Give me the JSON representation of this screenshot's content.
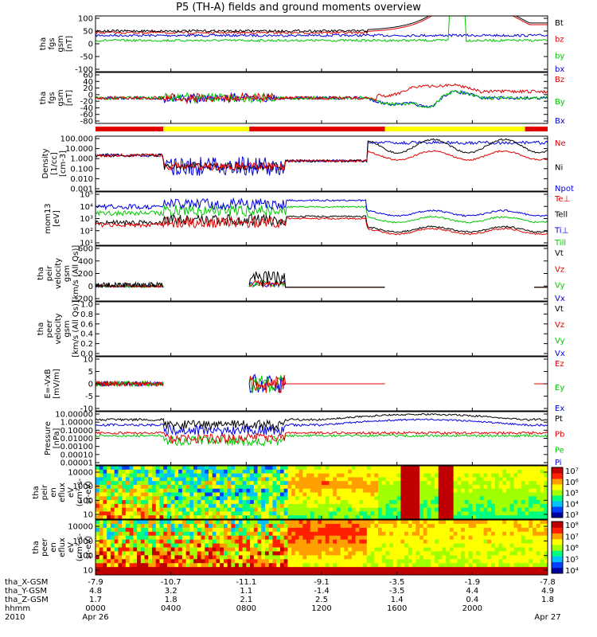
{
  "title": "P5 (TH-A) fields and ground moments overview",
  "colors": {
    "black": "#000000",
    "red": "#e00000",
    "green": "#00c800",
    "blue": "#0000e0",
    "yellow": "#ffff00"
  },
  "chart_data": {
    "type": "line",
    "panels": [
      {
        "id": "fgs",
        "ylabel": [
          "tha",
          "fgs",
          "gsm",
          "[nT]"
        ],
        "yticks": [
          "100",
          "50",
          "0",
          "-50",
          "-100"
        ],
        "ylim": [
          -100,
          100
        ],
        "legend": [
          {
            "text": "Bt",
            "color": "black"
          },
          {
            "text": "bz",
            "color": "red"
          },
          {
            "text": "by",
            "color": "green"
          },
          {
            "text": "bx",
            "color": "blue"
          }
        ]
      },
      {
        "id": "fgs2",
        "ylabel": [
          "tha",
          "fgs",
          "gsm",
          "[nT]"
        ],
        "yticks": [
          "60",
          "40",
          "20",
          "0",
          "-20",
          "-40",
          "-60",
          "-80"
        ],
        "ylim": [
          -90,
          60
        ],
        "legend": [
          {
            "text": "Bz",
            "color": "red"
          },
          {
            "text": "By",
            "color": "green"
          },
          {
            "text": "Bx",
            "color": "blue"
          }
        ]
      },
      {
        "id": "density",
        "ylabel": [
          "Density",
          "[1/cc]",
          "[cm-3]"
        ],
        "yticks": [
          "100.000",
          "10.000",
          "1.000",
          "0.100",
          "0.010",
          "0.001"
        ],
        "scale": "log",
        "ylim": [
          0.0003,
          300
        ],
        "legend": [
          {
            "text": "Ne",
            "color": "red"
          },
          {
            "text": "Ni",
            "color": "black"
          },
          {
            "text": "Npot",
            "color": "blue"
          }
        ]
      },
      {
        "id": "temp",
        "ylabel": [
          "mom13",
          "[eV]"
        ],
        "yticks": [
          "10⁵",
          "10⁴",
          "10³",
          "10²",
          "10¹"
        ],
        "scale": "log",
        "ylim": [
          5,
          100000
        ],
        "legend": [
          {
            "text": "Te⊥",
            "color": "red"
          },
          {
            "text": "Tell",
            "color": "black"
          },
          {
            "text": "Ti⊥",
            "color": "blue"
          },
          {
            "text": "Till",
            "color": "green"
          }
        ]
      },
      {
        "id": "peirv",
        "ylabel": [
          "tha",
          "peir",
          "velocity",
          "gsm",
          "[km/s (All Qs)]"
        ],
        "yticks": [
          "600",
          "400",
          "200",
          "0",
          "-200"
        ],
        "ylim": [
          -200,
          600
        ],
        "legend": [
          {
            "text": "Vt",
            "color": "black"
          },
          {
            "text": "Vz",
            "color": "red"
          },
          {
            "text": "Vy",
            "color": "green"
          },
          {
            "text": "Vx",
            "color": "blue"
          }
        ]
      },
      {
        "id": "peerv",
        "ylabel": [
          "tha",
          "peer",
          "velocity",
          "gsm",
          "[km/s (All Qs)]"
        ],
        "yticks": [
          "1.0",
          "0.8",
          "0.6",
          "0.4",
          "0.2",
          "0.0"
        ],
        "ylim": [
          0,
          1
        ],
        "legend": [
          {
            "text": "Vt",
            "color": "black"
          },
          {
            "text": "Vz",
            "color": "red"
          },
          {
            "text": "Vy",
            "color": "green"
          },
          {
            "text": "Vx",
            "color": "blue"
          }
        ]
      },
      {
        "id": "efield",
        "ylabel": [
          "E=-VxB",
          "[mV/m]"
        ],
        "yticks": [
          "10",
          "5",
          "0",
          "-5",
          "-10"
        ],
        "ylim": [
          -10,
          10
        ],
        "legend": [
          {
            "text": "Ez",
            "color": "red"
          },
          {
            "text": "Ey",
            "color": "green"
          },
          {
            "text": "Ex",
            "color": "blue"
          }
        ]
      },
      {
        "id": "pressure",
        "ylabel": [
          "Pressure",
          "[nPa]"
        ],
        "yticks": [
          "10.00000",
          "1.00000",
          "0.10000",
          "0.01000",
          "0.00100",
          "0.00010",
          "0.00001"
        ],
        "scale": "log",
        "ylim": [
          1e-05,
          10
        ],
        "legend": [
          {
            "text": "Pt",
            "color": "black"
          },
          {
            "text": "Pb",
            "color": "red"
          },
          {
            "text": "Pe",
            "color": "green"
          },
          {
            "text": "Pi",
            "color": "blue"
          }
        ]
      },
      {
        "id": "peirspec",
        "ylabel": [
          "tha",
          "peir",
          "en",
          "eflux",
          "eV",
          "(cm²-s-",
          "sr-eV)"
        ],
        "yticks": [
          "10000",
          "1000",
          "100",
          "10"
        ],
        "type": "heatmap",
        "colorbar": [
          "10⁷",
          "10⁶",
          "10⁵",
          "10⁴",
          "10³"
        ]
      },
      {
        "id": "peerspec",
        "ylabel": [
          "tha",
          "peer",
          "en",
          "eflux",
          "eV",
          "(cm²-s-",
          "sr-eV)"
        ],
        "yticks": [
          "10000",
          "1000",
          "100",
          "10"
        ],
        "type": "heatmap",
        "colorbar": [
          "10⁸",
          "10⁷",
          "10⁶",
          "10⁵",
          "10⁴"
        ]
      }
    ],
    "x_axis": {
      "row_labels": [
        "tha_X-GSM",
        "tha_Y-GSM",
        "tha_Z-GSM",
        "hhmm",
        "2010"
      ],
      "columns": [
        [
          "-7.9",
          "4.8",
          "1.7",
          "0000",
          "Apr 26"
        ],
        [
          "-10.7",
          "3.2",
          "1.8",
          "0400",
          ""
        ],
        [
          "-11.1",
          "1.1",
          "2.1",
          "0800",
          ""
        ],
        [
          "-9.1",
          "-1.4",
          "2.5",
          "1200",
          ""
        ],
        [
          "-3.5",
          "-3.5",
          "1.4",
          "1600",
          ""
        ],
        [
          "-1.9",
          "4.4",
          "0.4",
          "2000",
          ""
        ],
        [
          "-7.8",
          "4.9",
          "1.8",
          "",
          "Apr 27"
        ]
      ]
    }
  }
}
